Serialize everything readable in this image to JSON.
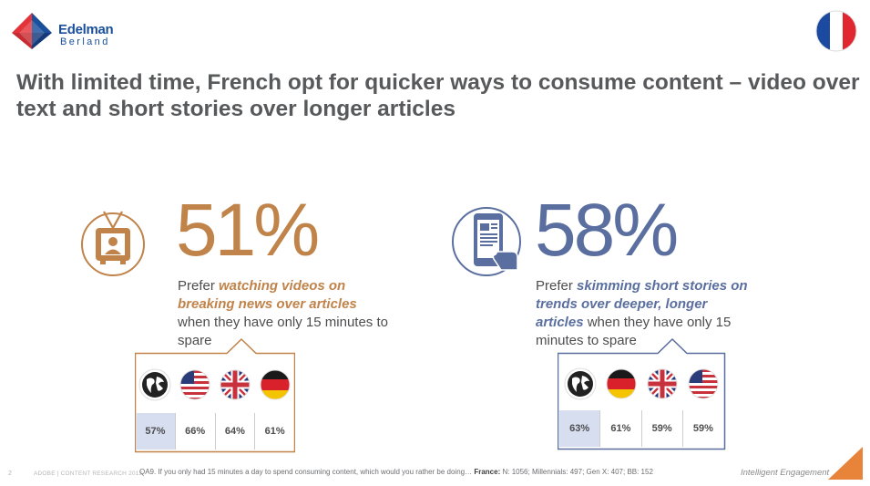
{
  "brand": {
    "logo_line1": "Edelman",
    "logo_line2": "Berland"
  },
  "headline": "With limited time, French opt for quicker ways to consume content – video over text and short stories over longer articles",
  "stats": [
    {
      "value": "51%",
      "desc_pre": "Prefer ",
      "desc_highlight": "watching videos on breaking news over articles",
      "desc_post": " when they have only 15 minutes to spare",
      "color": "#c0834a",
      "icon": "tv-icon",
      "markets": [
        {
          "icon": "globe-icon",
          "value": "57%",
          "highlight": true
        },
        {
          "icon": "us-flag-icon",
          "value": "66%",
          "highlight": false
        },
        {
          "icon": "uk-flag-icon",
          "value": "64%",
          "highlight": false
        },
        {
          "icon": "germany-flag-icon",
          "value": "61%",
          "highlight": false
        }
      ]
    },
    {
      "value": "58%",
      "desc_pre": "Prefer ",
      "desc_highlight": "skimming short stories on trends over deeper, longer articles",
      "desc_post": " when they have only 15 minutes to spare",
      "color": "#5a6e9f",
      "icon": "phone-icon",
      "markets": [
        {
          "icon": "globe-icon",
          "value": "63%",
          "highlight": true
        },
        {
          "icon": "germany-flag-icon",
          "value": "61%",
          "highlight": false
        },
        {
          "icon": "uk-flag-icon",
          "value": "59%",
          "highlight": false
        },
        {
          "icon": "us-flag-icon",
          "value": "59%",
          "highlight": false
        }
      ]
    }
  ],
  "footer": {
    "page": "2",
    "source": "ADOBE | CONTENT RESEARCH 2013",
    "question": "QA9. If you only had 15 minutes a day to spend consuming content, which would you rather be doing…",
    "sample_label": "France:",
    "sample": " N: 1056; Millennials: 497; Gen X: 407; BB: 152",
    "tagline": "Intelligent Engagement"
  },
  "colors": {
    "accent_orange": "#c0834a",
    "accent_blue": "#5a6e9f",
    "corner": "#e8833a"
  }
}
